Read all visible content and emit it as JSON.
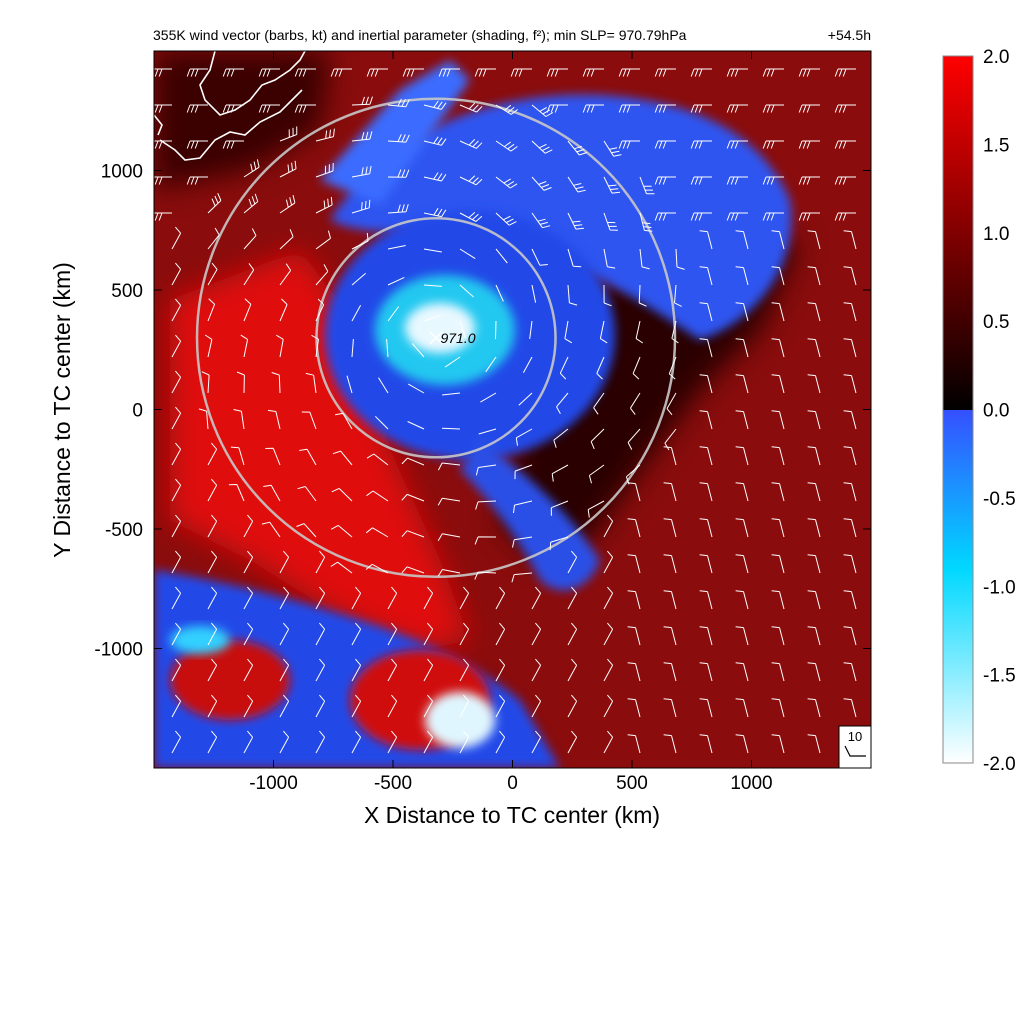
{
  "chart_data": {
    "type": "heatmap",
    "title": "355K wind vector (barbs, kt) and inertial parameter (shading, f²); min SLP= 970.79hPa",
    "lead_time": "+54.5h",
    "xlabel": "X Distance to TC center (km)",
    "ylabel": "Y Distance to TC center (km)",
    "xlim": [
      -1500,
      1500
    ],
    "ylim": [
      -1500,
      1500
    ],
    "xticks": [
      -1000,
      -500,
      0,
      500,
      1000
    ],
    "yticks": [
      -1000,
      -500,
      0,
      500,
      1000
    ],
    "colorbar": {
      "range": [
        -2.0,
        2.0
      ],
      "ticks": [
        "2.0",
        "1.5",
        "1.0",
        "0.5",
        "0.0",
        "-0.5",
        "-1.0",
        "-1.5",
        "-2.0"
      ],
      "positive_colors": [
        "#000000",
        "#5a0000",
        "#b40000",
        "#ff0000"
      ],
      "negative_colors": [
        "#3550ff",
        "#00d8ff",
        "#ffffff"
      ]
    },
    "center_label": {
      "text": "971.0",
      "x": -320,
      "y": 300
    },
    "range_rings": [
      {
        "center_x": -320,
        "center_y": 300,
        "radius_km": 500
      },
      {
        "center_x": -320,
        "center_y": 300,
        "radius_km": 1000
      }
    ],
    "barb_reference": {
      "label": "10",
      "unit": "kt"
    },
    "colors": {
      "background": "#8a0c0c",
      "ring": "#c8c8c8",
      "barb": "#ffffff",
      "coastline": "#ffffff"
    }
  }
}
